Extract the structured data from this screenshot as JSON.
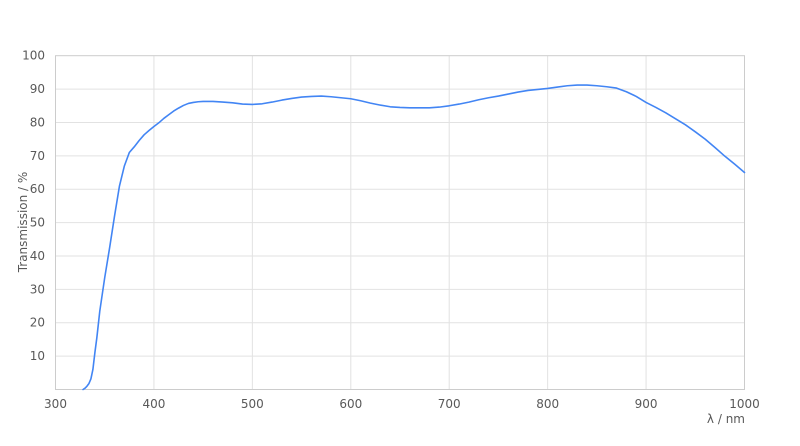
{
  "chart_data": {
    "type": "line",
    "title": "",
    "xlabel": "λ / nm",
    "ylabel": "Transmission / %",
    "xlim": [
      300,
      1000
    ],
    "ylim": [
      0,
      100
    ],
    "x_ticks": [
      300,
      400,
      500,
      600,
      700,
      800,
      900,
      1000
    ],
    "y_ticks": [
      10,
      20,
      30,
      40,
      50,
      60,
      70,
      80,
      90,
      100
    ],
    "grid": true,
    "legend": false,
    "series": [
      {
        "name": "Transmission",
        "color": "#4285f4",
        "points": [
          [
            328,
            0
          ],
          [
            330,
            0.4
          ],
          [
            332,
            1.0
          ],
          [
            334,
            1.8
          ],
          [
            336,
            3.2
          ],
          [
            338,
            6
          ],
          [
            340,
            11
          ],
          [
            342,
            15.5
          ],
          [
            345,
            23.5
          ],
          [
            350,
            33.5
          ],
          [
            355,
            42.5
          ],
          [
            360,
            52
          ],
          [
            365,
            61
          ],
          [
            370,
            67
          ],
          [
            375,
            71
          ],
          [
            380,
            72.7
          ],
          [
            385,
            74.6
          ],
          [
            390,
            76.3
          ],
          [
            395,
            77.6
          ],
          [
            400,
            78.8
          ],
          [
            405,
            79.9
          ],
          [
            410,
            81.2
          ],
          [
            415,
            82.3
          ],
          [
            420,
            83.4
          ],
          [
            425,
            84.3
          ],
          [
            430,
            85.1
          ],
          [
            435,
            85.7
          ],
          [
            440,
            86.0
          ],
          [
            445,
            86.2
          ],
          [
            450,
            86.3
          ],
          [
            455,
            86.3
          ],
          [
            460,
            86.3
          ],
          [
            470,
            86.1
          ],
          [
            480,
            85.9
          ],
          [
            490,
            85.5
          ],
          [
            500,
            85.4
          ],
          [
            510,
            85.6
          ],
          [
            520,
            86.1
          ],
          [
            530,
            86.7
          ],
          [
            540,
            87.2
          ],
          [
            550,
            87.6
          ],
          [
            560,
            87.8
          ],
          [
            570,
            87.9
          ],
          [
            580,
            87.7
          ],
          [
            590,
            87.4
          ],
          [
            600,
            87.1
          ],
          [
            610,
            86.5
          ],
          [
            620,
            85.8
          ],
          [
            630,
            85.2
          ],
          [
            640,
            84.7
          ],
          [
            650,
            84.5
          ],
          [
            660,
            84.4
          ],
          [
            670,
            84.4
          ],
          [
            680,
            84.4
          ],
          [
            690,
            84.6
          ],
          [
            700,
            85.0
          ],
          [
            710,
            85.5
          ],
          [
            720,
            86.1
          ],
          [
            730,
            86.8
          ],
          [
            740,
            87.4
          ],
          [
            750,
            87.9
          ],
          [
            760,
            88.5
          ],
          [
            770,
            89.1
          ],
          [
            780,
            89.6
          ],
          [
            790,
            89.9
          ],
          [
            800,
            90.2
          ],
          [
            810,
            90.6
          ],
          [
            820,
            91.0
          ],
          [
            830,
            91.2
          ],
          [
            840,
            91.2
          ],
          [
            850,
            91.0
          ],
          [
            860,
            90.7
          ],
          [
            870,
            90.3
          ],
          [
            880,
            89.2
          ],
          [
            890,
            87.8
          ],
          [
            900,
            86.0
          ],
          [
            910,
            84.5
          ],
          [
            920,
            82.9
          ],
          [
            930,
            81.1
          ],
          [
            940,
            79.3
          ],
          [
            950,
            77.2
          ],
          [
            960,
            75.0
          ],
          [
            970,
            72.5
          ],
          [
            980,
            69.9
          ],
          [
            990,
            67.5
          ],
          [
            1000,
            65.0
          ]
        ]
      }
    ]
  },
  "colors": {
    "background": "#ffffff",
    "gridline": "#e2e2e2",
    "axis_border": "#cccccc",
    "tick_text": "#595959",
    "line": "#4285f4"
  }
}
